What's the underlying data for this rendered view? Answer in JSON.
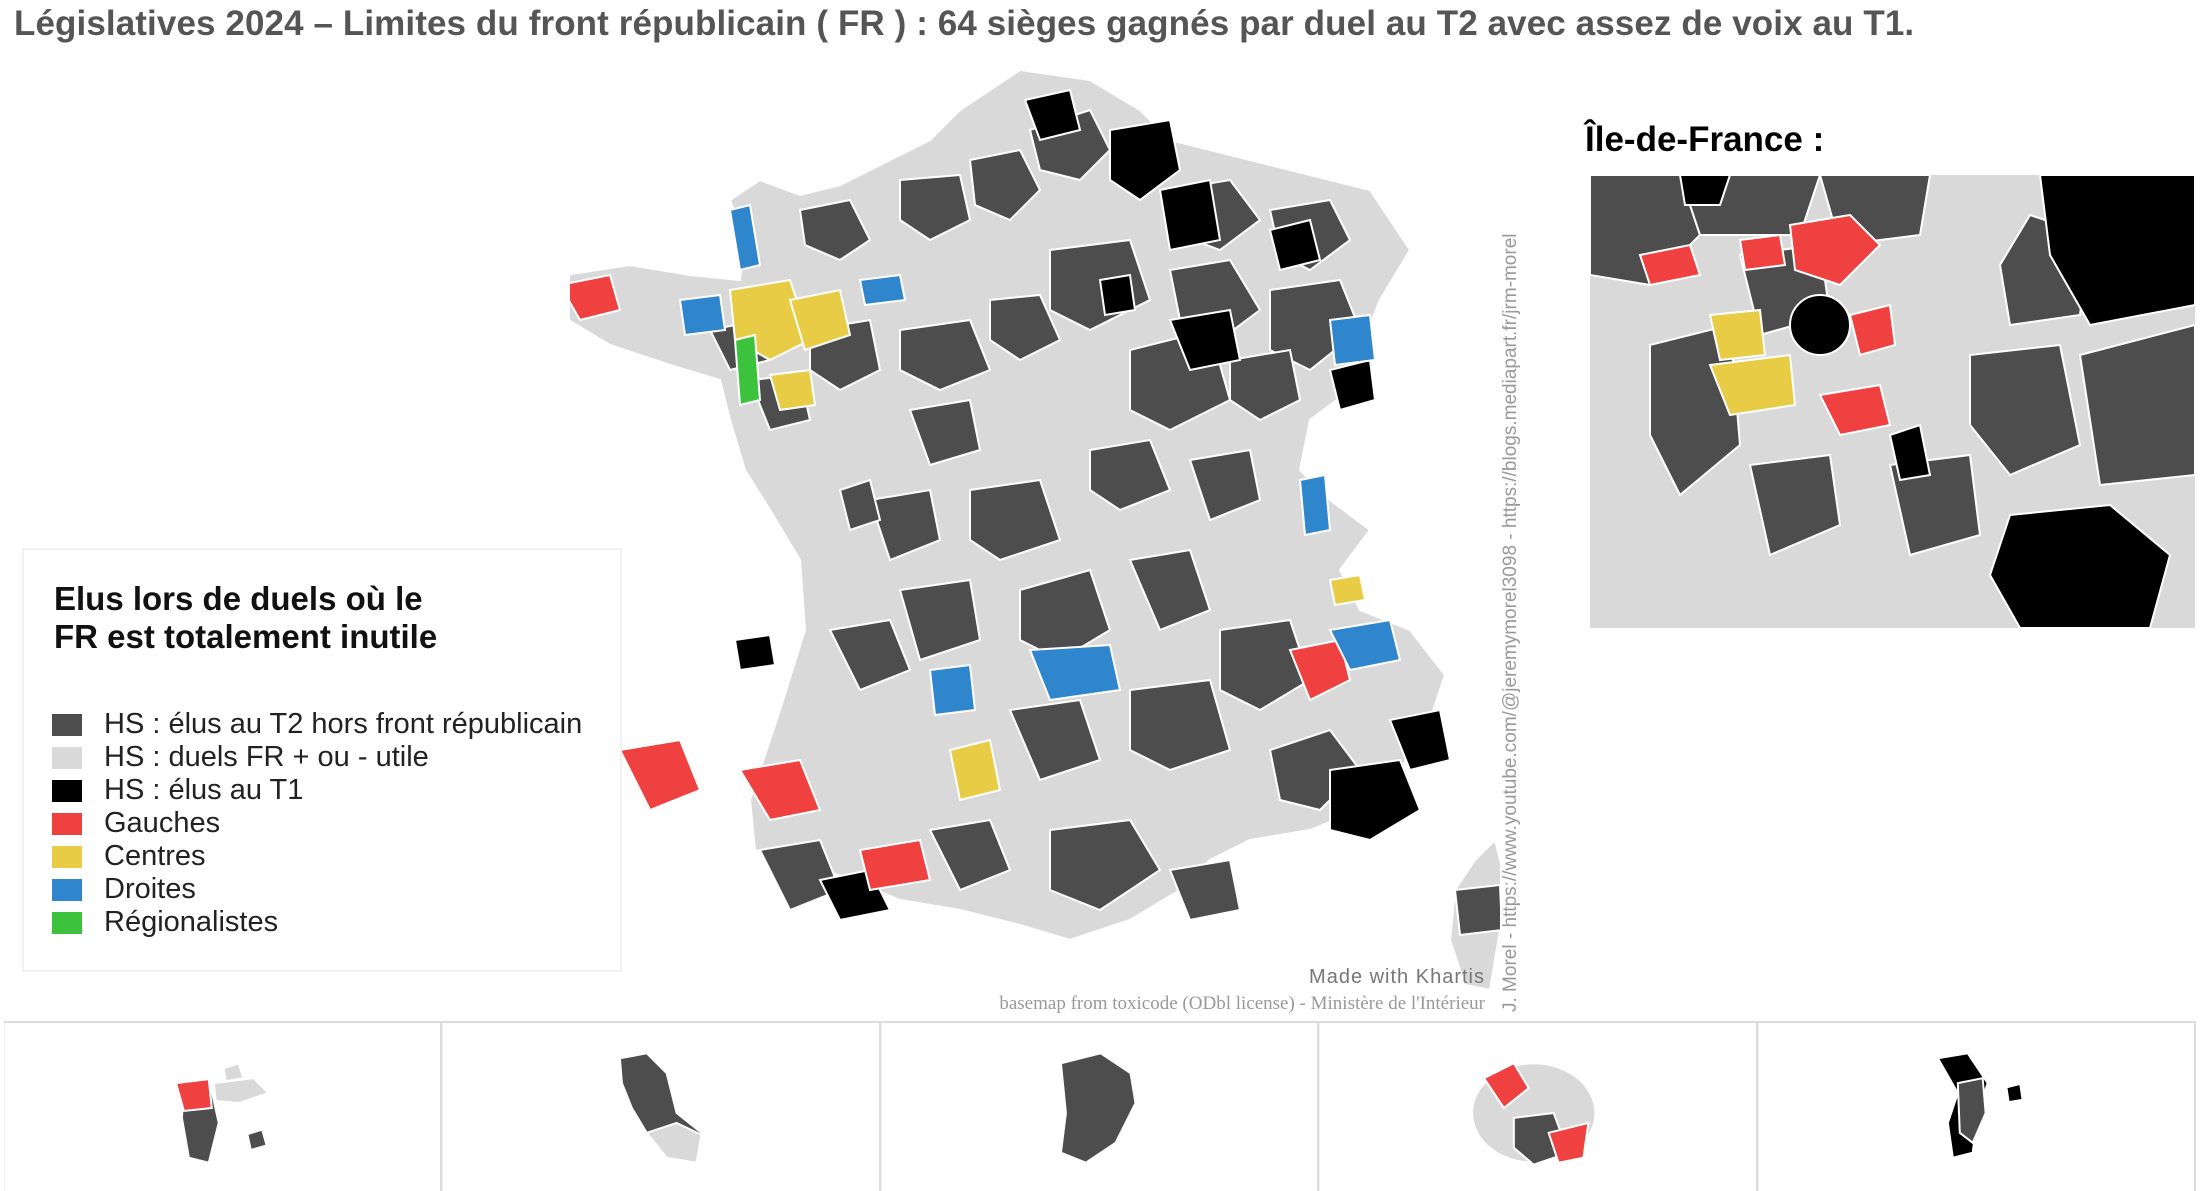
{
  "title": "Législatives 2024 – Limites du front républicain ( FR ) : 64 sièges gagnés par duel au T2 avec assez de voix au T1.",
  "idf_title": "Île-de-France :",
  "legend": {
    "title_line1": "Elus lors de duels où le",
    "title_line2": "FR est totalement inutile",
    "items": [
      {
        "label": "HS : élus au T2 hors front républicain",
        "color": "#4d4d4d"
      },
      {
        "label": "HS : duels FR + ou - utile",
        "color": "#d9d9d9"
      },
      {
        "label": "HS : élus au T1",
        "color": "#000000"
      },
      {
        "label": "Gauches",
        "color": "#f04141"
      },
      {
        "label": "Centres",
        "color": "#e8cc45"
      },
      {
        "label": "Droites",
        "color": "#2f86cc"
      },
      {
        "label": "Régionalistes",
        "color": "#3cc23c"
      }
    ]
  },
  "credits": {
    "khartis": "Made with Khartis",
    "basemap": "basemap from toxicode (ODbl license) - Ministère de l'Intérieur",
    "author": "J. Morel - https://www.youtube.com/@jeremymorel3098 - https://blogs.mediapart.fr/jrm-morel"
  },
  "colors": {
    "hors_fr": "#4d4d4d",
    "fr_utile": "#d9d9d9",
    "t1": "#000000",
    "gauches": "#f04141",
    "centres": "#e8cc45",
    "droites": "#2f86cc",
    "regionalistes": "#3cc23c",
    "border": "#ffffff"
  },
  "insets": [
    {
      "territory": "guadeloupe",
      "dominant": "hors_fr"
    },
    {
      "territory": "martinique",
      "dominant": "hors_fr"
    },
    {
      "territory": "guyane",
      "dominant": "hors_fr"
    },
    {
      "territory": "reunion",
      "dominant": "gauches"
    },
    {
      "territory": "mayotte",
      "dominant": "t1"
    }
  ]
}
